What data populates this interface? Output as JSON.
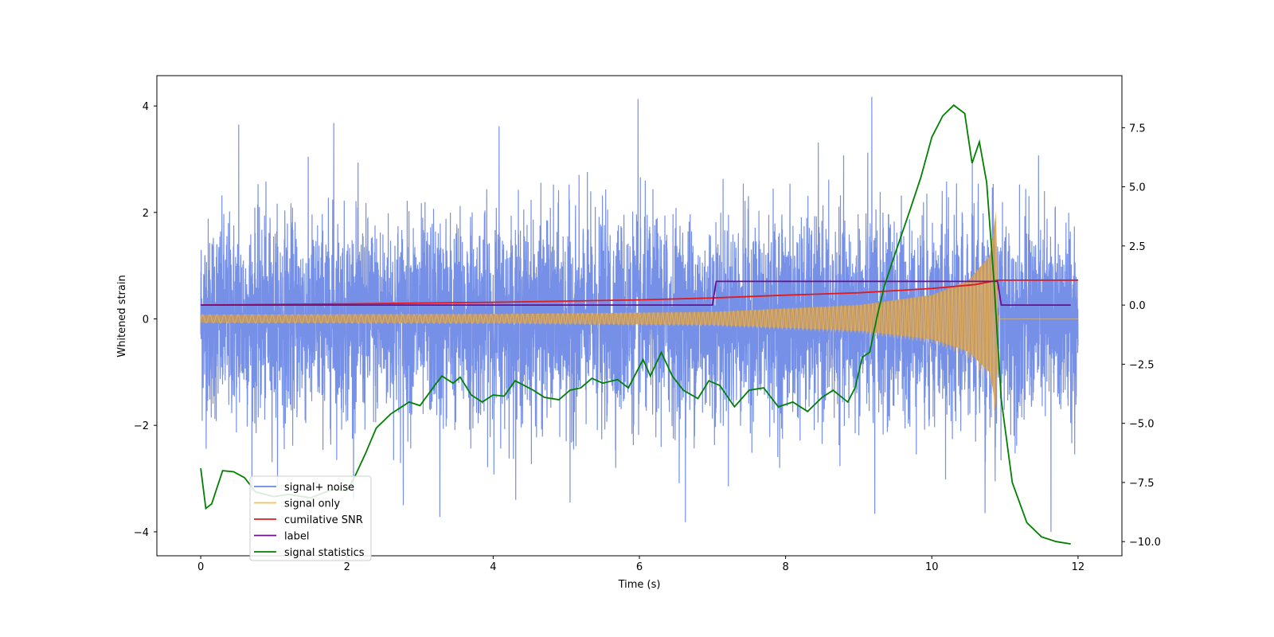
{
  "chart_data": {
    "type": "line",
    "title": "",
    "xlabel": "Time (s)",
    "ylabel": "Whitened strain",
    "xlim": [
      -0.6,
      12.6
    ],
    "ylim": [
      -4.45,
      4.57
    ],
    "y2lim": [
      -10.6,
      9.7
    ],
    "x_ticks": [
      0,
      2,
      4,
      6,
      8,
      10,
      12
    ],
    "y_ticks": [
      -4,
      -2,
      0,
      2,
      4
    ],
    "y2_ticks": [
      -10.0,
      -7.5,
      -5.0,
      -2.5,
      0.0,
      2.5,
      5.0,
      7.5
    ],
    "legend_location": "lower-left",
    "series": [
      {
        "name": "signal+ noise",
        "axis": "left",
        "color": "#6a87e6",
        "description": "whitened Gaussian noise plus injected chirp, sampled over 0-12 s",
        "x_range": [
          0,
          12
        ],
        "std": 1.0,
        "extreme_peaks": [
          {
            "x": 0.52,
            "y": 3.65
          },
          {
            "x": 1.82,
            "y": 3.68
          },
          {
            "x": 3.27,
            "y": 3.8
          },
          {
            "x": 4.08,
            "y": 3.62
          },
          {
            "x": 5.98,
            "y": 4.13
          },
          {
            "x": 9.18,
            "y": 4.15
          },
          {
            "x": 6.63,
            "y": -3.82
          },
          {
            "x": 9.22,
            "y": -3.75
          },
          {
            "x": 11.63,
            "y": -4.0
          },
          {
            "x": 3.27,
            "y": -3.72
          },
          {
            "x": 5.05,
            "y": -3.45
          },
          {
            "x": 2.77,
            "y": -3.5
          }
        ]
      },
      {
        "name": "signal only",
        "axis": "left",
        "color": "#ffbf4d",
        "description": "chirp waveform with growing amplitude until merger near 10.9 s",
        "amplitude_envelope": [
          [
            0,
            0.08
          ],
          [
            4,
            0.09
          ],
          [
            7,
            0.13
          ],
          [
            9,
            0.26
          ],
          [
            10,
            0.45
          ],
          [
            10.5,
            0.72
          ],
          [
            10.8,
            1.2
          ],
          [
            10.88,
            2.05
          ],
          [
            10.92,
            0.0
          ],
          [
            12,
            0.0
          ]
        ]
      },
      {
        "name": "cumilative SNR",
        "axis": "right",
        "color": "#e31a1c",
        "points": [
          [
            0,
            0.0
          ],
          [
            2,
            0.05
          ],
          [
            4,
            0.12
          ],
          [
            6,
            0.22
          ],
          [
            7,
            0.3
          ],
          [
            8,
            0.42
          ],
          [
            9,
            0.52
          ],
          [
            10,
            0.7
          ],
          [
            10.6,
            0.87
          ],
          [
            10.9,
            1.05
          ],
          [
            12,
            1.05
          ]
        ]
      },
      {
        "name": "label",
        "axis": "right",
        "color": "#6b0f8a",
        "points": [
          [
            0,
            0.0
          ],
          [
            7.0,
            0.0
          ],
          [
            7.05,
            1.0
          ],
          [
            10.9,
            1.0
          ],
          [
            10.95,
            0.0
          ],
          [
            11.9,
            0.0
          ]
        ]
      },
      {
        "name": "signal statistics",
        "axis": "right",
        "color": "#008000",
        "points": [
          [
            0,
            -6.9
          ],
          [
            0.07,
            -8.6
          ],
          [
            0.15,
            -8.4
          ],
          [
            0.3,
            -7.0
          ],
          [
            0.45,
            -7.05
          ],
          [
            0.6,
            -7.3
          ],
          [
            0.75,
            -7.9
          ],
          [
            1.0,
            -8.1
          ],
          [
            1.2,
            -8.0
          ],
          [
            1.5,
            -8.15
          ],
          [
            1.8,
            -7.8
          ],
          [
            2.0,
            -7.85
          ],
          [
            2.1,
            -7.3
          ],
          [
            2.25,
            -6.3
          ],
          [
            2.4,
            -5.2
          ],
          [
            2.6,
            -4.6
          ],
          [
            2.85,
            -4.1
          ],
          [
            3.0,
            -4.25
          ],
          [
            3.2,
            -3.4
          ],
          [
            3.3,
            -3.0
          ],
          [
            3.45,
            -3.3
          ],
          [
            3.55,
            -3.05
          ],
          [
            3.7,
            -3.8
          ],
          [
            3.85,
            -4.1
          ],
          [
            4.0,
            -3.8
          ],
          [
            4.15,
            -3.85
          ],
          [
            4.3,
            -3.2
          ],
          [
            4.55,
            -3.6
          ],
          [
            4.7,
            -3.9
          ],
          [
            4.9,
            -4.0
          ],
          [
            5.05,
            -3.6
          ],
          [
            5.2,
            -3.5
          ],
          [
            5.35,
            -3.1
          ],
          [
            5.5,
            -3.3
          ],
          [
            5.7,
            -3.15
          ],
          [
            5.85,
            -3.5
          ],
          [
            6.05,
            -2.3
          ],
          [
            6.15,
            -3.0
          ],
          [
            6.3,
            -2.0
          ],
          [
            6.45,
            -3.0
          ],
          [
            6.6,
            -3.6
          ],
          [
            6.8,
            -3.95
          ],
          [
            6.95,
            -3.2
          ],
          [
            7.1,
            -3.4
          ],
          [
            7.3,
            -4.3
          ],
          [
            7.5,
            -3.6
          ],
          [
            7.7,
            -3.5
          ],
          [
            7.9,
            -4.3
          ],
          [
            8.1,
            -4.1
          ],
          [
            8.3,
            -4.5
          ],
          [
            8.5,
            -3.9
          ],
          [
            8.65,
            -3.6
          ],
          [
            8.85,
            -4.1
          ],
          [
            8.95,
            -3.5
          ],
          [
            9.05,
            -2.2
          ],
          [
            9.15,
            -2.0
          ],
          [
            9.25,
            -0.5
          ],
          [
            9.35,
            0.8
          ],
          [
            9.5,
            2.2
          ],
          [
            9.7,
            4.0
          ],
          [
            9.85,
            5.4
          ],
          [
            10.0,
            7.1
          ],
          [
            10.15,
            8.0
          ],
          [
            10.3,
            8.45
          ],
          [
            10.45,
            8.1
          ],
          [
            10.55,
            6.0
          ],
          [
            10.65,
            6.9
          ],
          [
            10.75,
            5.2
          ],
          [
            10.85,
            1.0
          ],
          [
            10.95,
            -4.0
          ],
          [
            11.1,
            -7.5
          ],
          [
            11.3,
            -9.2
          ],
          [
            11.5,
            -9.8
          ],
          [
            11.7,
            -10.0
          ],
          [
            11.9,
            -10.1
          ]
        ]
      }
    ]
  }
}
